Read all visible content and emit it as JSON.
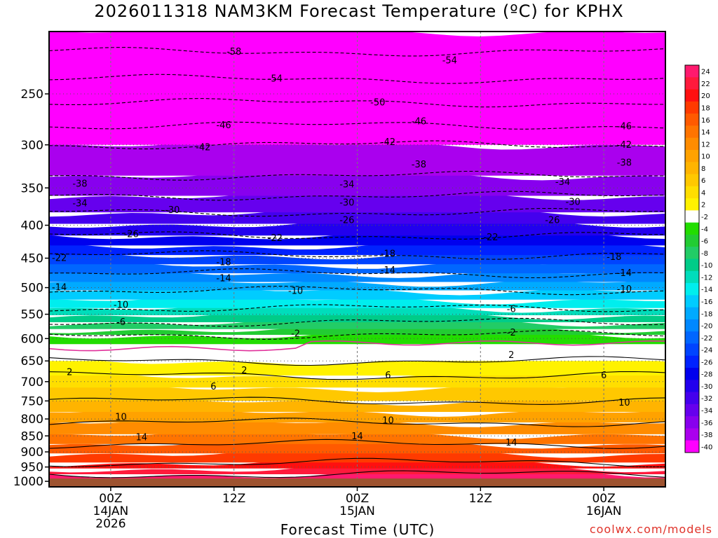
{
  "title": "2026011318 NAM3KM Forecast Temperature (ºC) for KPHX",
  "xlabel": "Forecast Time (UTC)",
  "credit": "coolwx.com/models",
  "chart_data": {
    "type": "heatmap",
    "y_axis": {
      "label": "",
      "scale": "log-pressure",
      "ticks": [
        250,
        300,
        350,
        400,
        450,
        500,
        550,
        600,
        650,
        700,
        750,
        800,
        850,
        900,
        950,
        1000
      ],
      "range_hpa": [
        200,
        1020
      ]
    },
    "x_axis": {
      "label": "Forecast Time (UTC)",
      "range_hours": [
        -6,
        54
      ],
      "ticks": [
        {
          "hour": 0,
          "lines": [
            "00Z",
            "14JAN",
            "2026"
          ]
        },
        {
          "hour": 12,
          "lines": [
            "12Z"
          ]
        },
        {
          "hour": 24,
          "lines": [
            "00Z",
            "15JAN"
          ]
        },
        {
          "hour": 36,
          "lines": [
            "12Z"
          ]
        },
        {
          "hour": 48,
          "lines": [
            "00Z",
            "16JAN"
          ]
        }
      ]
    },
    "colorbar_labels": [
      "24",
      "22",
      "20",
      "18",
      "16",
      "14",
      "12",
      "10",
      "8",
      "6",
      "4",
      "2",
      "-2",
      "-4",
      "-6",
      "-8",
      "-10",
      "-12",
      "-14",
      "-16",
      "-18",
      "-20",
      "-22",
      "-24",
      "-26",
      "-28",
      "-30",
      "-32",
      "-34",
      "-36",
      "-38",
      "-40"
    ],
    "contour_labels": [
      {
        "value": "-58",
        "hour": 12,
        "p": 215
      },
      {
        "value": "-54",
        "hour": 16,
        "p": 237
      },
      {
        "value": "-54",
        "hour": 33,
        "p": 222
      },
      {
        "value": "-50",
        "hour": 26,
        "p": 258
      },
      {
        "value": "-46",
        "hour": 11,
        "p": 280
      },
      {
        "value": "-46",
        "hour": 30,
        "p": 276
      },
      {
        "value": "-46",
        "hour": 50,
        "p": 281
      },
      {
        "value": "-42",
        "hour": 9,
        "p": 303
      },
      {
        "value": "-42",
        "hour": 27,
        "p": 297
      },
      {
        "value": "-42",
        "hour": 50,
        "p": 300
      },
      {
        "value": "-38",
        "hour": -3,
        "p": 345
      },
      {
        "value": "-38",
        "hour": 30,
        "p": 322
      },
      {
        "value": "-38",
        "hour": 50,
        "p": 320
      },
      {
        "value": "-34",
        "hour": -3,
        "p": 370
      },
      {
        "value": "-34",
        "hour": 23,
        "p": 346
      },
      {
        "value": "-34",
        "hour": 44,
        "p": 343
      },
      {
        "value": "-30",
        "hour": 6,
        "p": 379
      },
      {
        "value": "-30",
        "hour": 23,
        "p": 369
      },
      {
        "value": "-30",
        "hour": 45,
        "p": 368
      },
      {
        "value": "-26",
        "hour": 2,
        "p": 413
      },
      {
        "value": "-26",
        "hour": 23,
        "p": 393
      },
      {
        "value": "-26",
        "hour": 43,
        "p": 393
      },
      {
        "value": "-22",
        "hour": -5,
        "p": 450
      },
      {
        "value": "-22",
        "hour": 16,
        "p": 419
      },
      {
        "value": "-22",
        "hour": 37,
        "p": 418
      },
      {
        "value": "-18",
        "hour": 11,
        "p": 457
      },
      {
        "value": "-18",
        "hour": 27,
        "p": 443
      },
      {
        "value": "-18",
        "hour": 49,
        "p": 448
      },
      {
        "value": "-14",
        "hour": -5,
        "p": 500
      },
      {
        "value": "-14",
        "hour": 11,
        "p": 484
      },
      {
        "value": "-14",
        "hour": 27,
        "p": 470
      },
      {
        "value": "-14",
        "hour": 50,
        "p": 475
      },
      {
        "value": "-10",
        "hour": 1,
        "p": 532
      },
      {
        "value": "-10",
        "hour": 18,
        "p": 506
      },
      {
        "value": "-10",
        "hour": 50,
        "p": 503
      },
      {
        "value": "-6",
        "hour": 1,
        "p": 566
      },
      {
        "value": "-6",
        "hour": 39,
        "p": 540
      },
      {
        "value": "-2",
        "hour": 18,
        "p": 590
      },
      {
        "value": "-2",
        "hour": 39,
        "p": 588
      },
      {
        "value": "2",
        "hour": -4,
        "p": 677
      },
      {
        "value": "2",
        "hour": 13,
        "p": 673
      },
      {
        "value": "2",
        "hour": 39,
        "p": 637
      },
      {
        "value": "6",
        "hour": 10,
        "p": 713
      },
      {
        "value": "6",
        "hour": 27,
        "p": 685
      },
      {
        "value": "6",
        "hour": 48,
        "p": 685
      },
      {
        "value": "10",
        "hour": 1,
        "p": 795
      },
      {
        "value": "10",
        "hour": 27,
        "p": 805
      },
      {
        "value": "10",
        "hour": 50,
        "p": 755
      },
      {
        "value": "14",
        "hour": 3,
        "p": 855
      },
      {
        "value": "14",
        "hour": 24,
        "p": 852
      },
      {
        "value": "14",
        "hour": 39,
        "p": 871
      }
    ]
  },
  "colors": {
    "ground": "#9e5330",
    "credit": "#e0332a",
    "zero_line": "#e0309a",
    "palette_warm_to_cold": [
      "#ff1a6e",
      "#ff1a3c",
      "#ff1010",
      "#ff3a00",
      "#ff5a00",
      "#ff7400",
      "#ff8c00",
      "#ffa200",
      "#ffb400",
      "#ffc800",
      "#ffde00",
      "#fff200",
      "#ffffff",
      "#22dd00",
      "#22cc33",
      "#22cc66",
      "#00cc88",
      "#00ddbb",
      "#00eeee",
      "#00ccff",
      "#00aaff",
      "#0088ff",
      "#0066ff",
      "#0044ff",
      "#0022ff",
      "#0000ee",
      "#2200ee",
      "#4400ee",
      "#6600ee",
      "#8800ee",
      "#aa00ee",
      "#ff00ff"
    ]
  }
}
